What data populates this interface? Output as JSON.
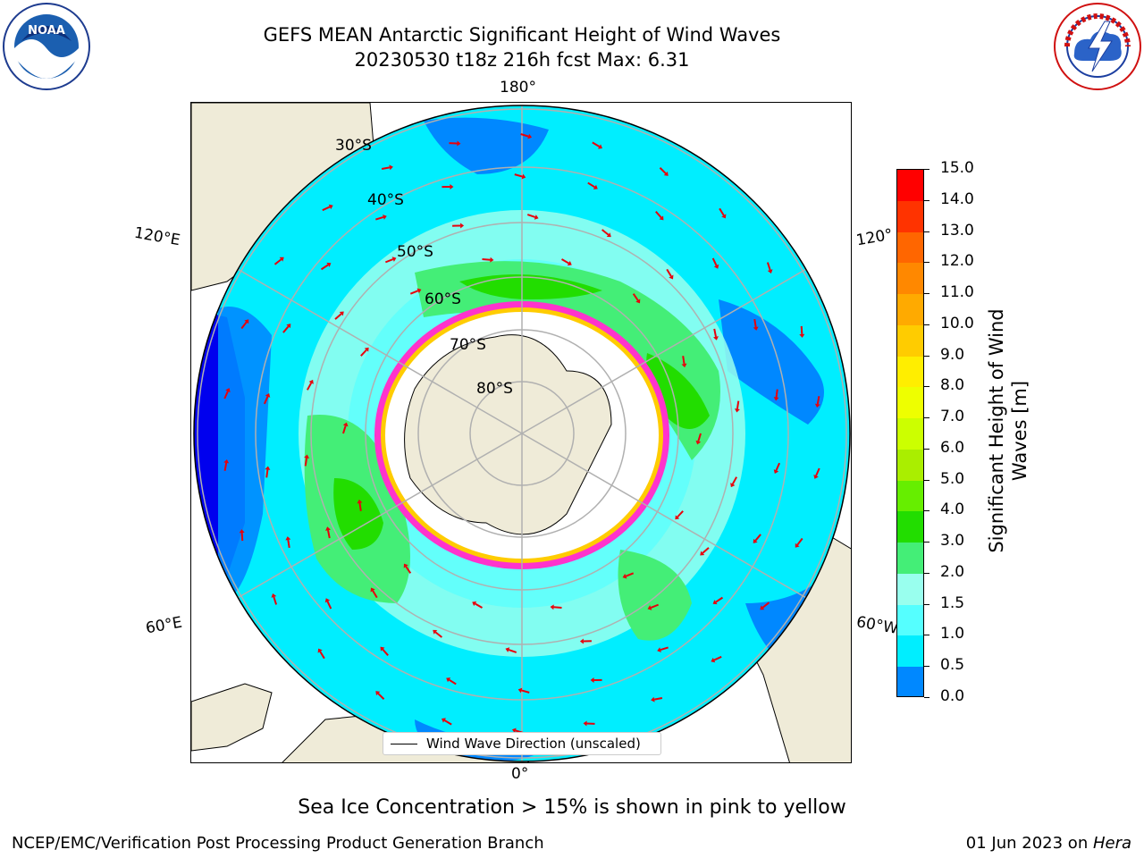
{
  "header": {
    "title_line1": "GEFS MEAN Antarctic Significant Height of Wind Waves",
    "title_line2": "20230530 t18z 216h fcst   Max: 6.31"
  },
  "logos": {
    "left": {
      "icon": "noaa-logo",
      "text": "NOAA"
    },
    "right": {
      "icon": "nws-logo",
      "text": "NATIONAL WEATHER SERVICE"
    }
  },
  "map": {
    "projection": "south-polar-stereographic",
    "longitude_labels": {
      "top": "180°",
      "bottom": "0°",
      "left_upper": "120°E",
      "right_upper": "120°",
      "left_lower": "60°E",
      "right_lower": "60°W"
    },
    "latitude_labels": [
      "30°S",
      "40°S",
      "50°S",
      "60°S",
      "70°S",
      "80°S"
    ],
    "legend": "Wind Wave Direction (unscaled)",
    "colors": {
      "land": "#efebd8",
      "grid": "#b0b0b0",
      "arrow": "#e8000b",
      "ice": "#ff33cc"
    }
  },
  "colorbar": {
    "title": "Significant Height of Wind Waves [m]",
    "ticks": [
      "15.0",
      "14.0",
      "13.0",
      "12.0",
      "11.0",
      "10.0",
      "9.0",
      "8.0",
      "7.0",
      "6.0",
      "5.0",
      "4.0",
      "3.0",
      "2.0",
      "1.5",
      "1.0",
      "0.5",
      "0.0"
    ],
    "colors": [
      "#ff0000",
      "#ff3300",
      "#ff6600",
      "#ff8800",
      "#ffaa00",
      "#ffcc00",
      "#ffee00",
      "#eeff00",
      "#ccff00",
      "#aaee00",
      "#66ee00",
      "#22dd00",
      "#44ee77",
      "#99ffee",
      "#55ffff",
      "#00eeff",
      "#0088ff",
      "#0000ee"
    ]
  },
  "notes": {
    "sea_ice": "Sea Ice Concentration > 15% is shown in pink to yellow",
    "footer_left": "NCEP/EMC/Verification Post Processing Product Generation Branch",
    "footer_right_date": "01 Jun 2023 on ",
    "footer_right_machine": "Hera"
  }
}
